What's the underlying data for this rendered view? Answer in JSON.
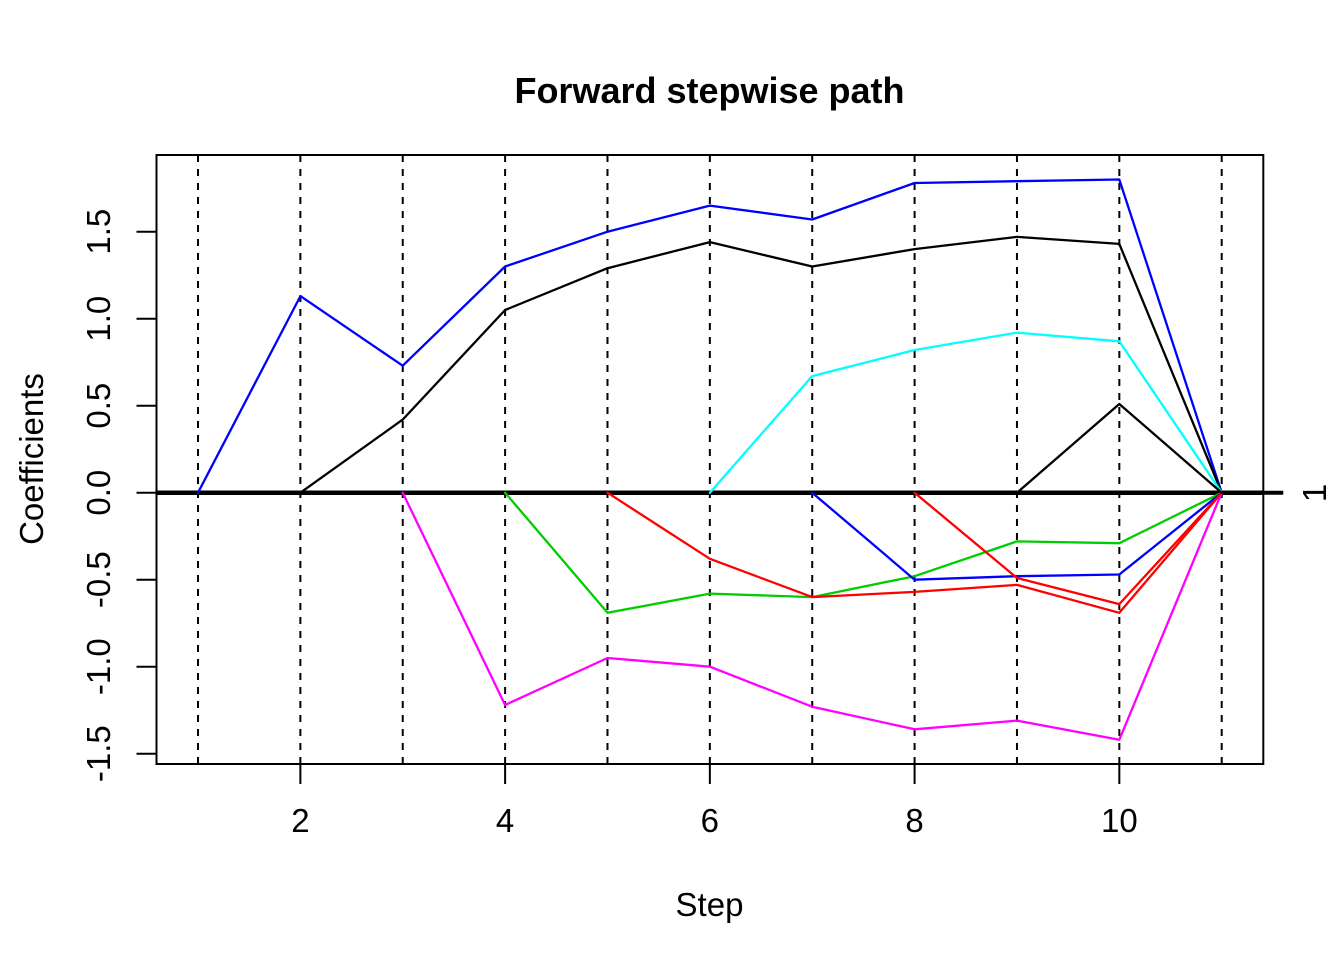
{
  "chart_data": {
    "type": "line",
    "title": "Forward stepwise path",
    "xlabel": "Step",
    "ylabel": "Coefficients",
    "right_axis_label": "1",
    "x_ticks": [
      2,
      4,
      6,
      8,
      10
    ],
    "x_tick_labels": [
      "2",
      "4",
      "6",
      "8",
      "10"
    ],
    "y_ticks": [
      -1.5,
      -1.0,
      -0.5,
      0.0,
      0.5,
      1.0,
      1.5
    ],
    "y_tick_labels": [
      "-1.5",
      "-1.0",
      "-0.5",
      "0.0",
      "0.5",
      "1.0",
      "1.5"
    ],
    "xlim": [
      0.6,
      11.4
    ],
    "ylim": [
      -1.56,
      1.94
    ],
    "grid_steps": [
      1,
      2,
      3,
      4,
      5,
      6,
      7,
      8,
      9,
      10,
      11
    ],
    "grid_style": "vertical-dashed-black",
    "zero_line_y": 0,
    "legend": "none",
    "series": [
      {
        "name": "path-blue-1",
        "color": "#0000FF",
        "points": [
          [
            1,
            0
          ],
          [
            2,
            1.13
          ],
          [
            3,
            0.73
          ],
          [
            4,
            1.3
          ],
          [
            5,
            1.5
          ],
          [
            6,
            1.65
          ],
          [
            7,
            1.57
          ],
          [
            8,
            1.78
          ],
          [
            9,
            1.79
          ],
          [
            10,
            1.8
          ],
          [
            11,
            0
          ]
        ]
      },
      {
        "name": "path-black-1",
        "color": "#000000",
        "points": [
          [
            2,
            0
          ],
          [
            3,
            0.42
          ],
          [
            4,
            1.05
          ],
          [
            5,
            1.29
          ],
          [
            6,
            1.44
          ],
          [
            7,
            1.3
          ],
          [
            8,
            1.4
          ],
          [
            9,
            1.47
          ],
          [
            10,
            1.43
          ],
          [
            11,
            0
          ]
        ]
      },
      {
        "name": "path-magenta-1",
        "color": "#FF00FF",
        "points": [
          [
            3,
            0
          ],
          [
            4,
            -1.22
          ],
          [
            5,
            -0.95
          ],
          [
            6,
            -1.0
          ],
          [
            7,
            -1.23
          ],
          [
            8,
            -1.36
          ],
          [
            9,
            -1.31
          ],
          [
            10,
            -1.42
          ],
          [
            11,
            0
          ]
        ]
      },
      {
        "name": "path-green-1",
        "color": "#00CD00",
        "points": [
          [
            4,
            0
          ],
          [
            5,
            -0.69
          ],
          [
            6,
            -0.58
          ],
          [
            7,
            -0.6
          ],
          [
            8,
            -0.48
          ],
          [
            9,
            -0.28
          ],
          [
            10,
            -0.29
          ],
          [
            11,
            0
          ]
        ]
      },
      {
        "name": "path-red-1",
        "color": "#FF0000",
        "points": [
          [
            5,
            0
          ],
          [
            6,
            -0.38
          ],
          [
            7,
            -0.6
          ],
          [
            8,
            -0.57
          ],
          [
            9,
            -0.53
          ],
          [
            10,
            -0.69
          ],
          [
            11,
            0
          ]
        ]
      },
      {
        "name": "path-cyan-1",
        "color": "#00FFFF",
        "points": [
          [
            6,
            0
          ],
          [
            7,
            0.67
          ],
          [
            8,
            0.82
          ],
          [
            9,
            0.92
          ],
          [
            10,
            0.87
          ],
          [
            11,
            0
          ]
        ]
      },
      {
        "name": "path-blue-2",
        "color": "#0000FF",
        "points": [
          [
            7,
            0
          ],
          [
            8,
            -0.5
          ],
          [
            9,
            -0.48
          ],
          [
            10,
            -0.47
          ],
          [
            11,
            0
          ]
        ]
      },
      {
        "name": "path-red-2",
        "color": "#FF0000",
        "points": [
          [
            8,
            0
          ],
          [
            9,
            -0.49
          ],
          [
            10,
            -0.64
          ],
          [
            11,
            0
          ]
        ]
      },
      {
        "name": "path-black-2",
        "color": "#000000",
        "points": [
          [
            9,
            0
          ],
          [
            10,
            0.51
          ],
          [
            11,
            0
          ]
        ]
      }
    ],
    "axis_color": "#000000",
    "background_color": "#FFFFFF"
  }
}
